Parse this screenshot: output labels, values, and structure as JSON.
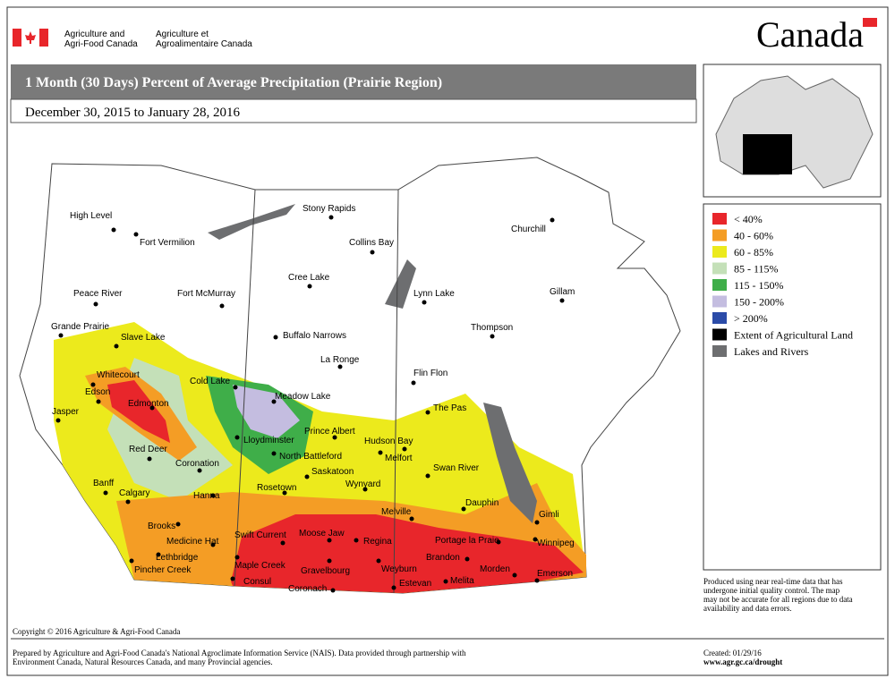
{
  "header": {
    "department_en": [
      "Agriculture and",
      "Agri-Food Canada"
    ],
    "department_fr": [
      "Agriculture et",
      "Agroalimentaire Canada"
    ],
    "wordmark": "Canada"
  },
  "title": "1 Month (30 Days) Percent of Average Precipitation  (Prairie Region)",
  "date_range": "December 30, 2015 to January 28, 2016",
  "legend": [
    {
      "label": "< 40%",
      "color": "#e8262b"
    },
    {
      "label": "40 - 60%",
      "color": "#f49d25"
    },
    {
      "label": "60 - 85%",
      "color": "#ecea1c"
    },
    {
      "label": "85 - 115%",
      "color": "#c4e0b8"
    },
    {
      "label": "115 - 150%",
      "color": "#3fae49"
    },
    {
      "label": "150 - 200%",
      "color": "#c4bde0"
    },
    {
      "label": "> 200%",
      "color": "#2b4ba8"
    },
    {
      "label": "Extent of Agricultural Land",
      "color": "#000000"
    },
    {
      "label": "Lakes and Rivers",
      "color": "#6d6e70"
    }
  ],
  "cities": [
    "High Level",
    "Fort Vermilion",
    "Stony Rapids",
    "Churchill",
    "Collins Bay",
    "Fort McMurray",
    "Cree Lake",
    "Peace River",
    "Lynn Lake",
    "Gillam",
    "Grande Prairie",
    "Slave Lake",
    "Buffalo Narrows",
    "Thompson",
    "La Ronge",
    "Flin Flon",
    "Whitecourt",
    "Cold Lake",
    "Edson",
    "Meadow Lake",
    "Edmonton",
    "Jasper",
    "The Pas",
    "Lloydminster",
    "Prince Albert",
    "Hudson Bay",
    "North Battleford",
    "Melfort",
    "Red Deer",
    "Coronation",
    "Swan River",
    "Saskatoon",
    "Wynyard",
    "Banff",
    "Hanna",
    "Calgary",
    "Rosetown",
    "Dauphin",
    "Gimli",
    "Melville",
    "Brooks",
    "Medicine Hat",
    "Swift Current",
    "Moose Jaw",
    "Regina",
    "Portage la Praie",
    "Winnipeg",
    "Lethbridge",
    "Brandon",
    "Maple Creek",
    "Gravelbourg",
    "Weyburn",
    "Morden",
    "Pincher Creek",
    "Emerson",
    "Consul",
    "Melita",
    "Estevan",
    "Coronach"
  ],
  "note": [
    "Produced using near real-time data that has",
    "undergone initial quality control.  The map",
    "may not be accurate for all regions due to data",
    "availability and data errors."
  ],
  "copyright": "Copyright © 2016 Agriculture & Agri-Food Canada",
  "prepared": [
    "Prepared by Agriculture and Agri-Food Canada's National Agroclimate Information Service (NAIS).   Data provided through partnership with",
    "Environment Canada, Natural Resources Canada, and many Provincial agencies."
  ],
  "created": "Created: 01/29/16",
  "url": "www.agr.gc.ca/drought"
}
